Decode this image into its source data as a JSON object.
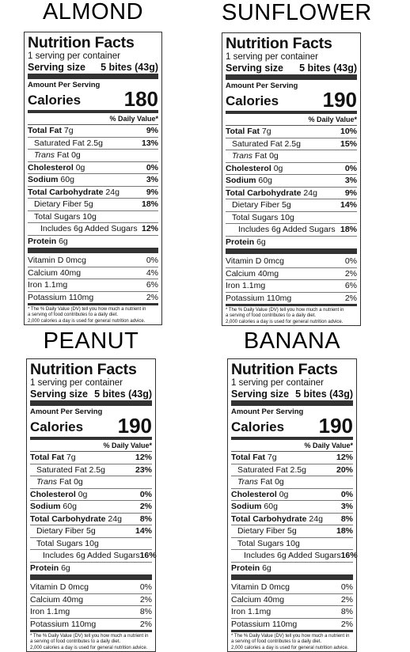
{
  "common": {
    "nutrition_facts": "Nutrition Facts",
    "servings": "1 serving per container",
    "serving_size_label": "Serving size",
    "serving_size_value": "5 bites (43g)",
    "amount_per_serving": "Amount Per Serving",
    "calories_label": "Calories",
    "daily_value_header": "% Daily Value*",
    "total_fat": "Total Fat",
    "saturated_fat": "Saturated Fat 2.5g",
    "trans_fat_prefix": "Trans",
    "trans_fat_suffix": "Fat 0g",
    "cholesterol": "Cholesterol",
    "cholesterol_amt": "0g",
    "sodium": "Sodium",
    "sodium_amt": "60g",
    "total_carb": "Total Carbohydrate",
    "total_carb_amt": "24g",
    "dietary_fiber": "Dietary Fiber 5g",
    "total_sugars": "Total Sugars 10g",
    "added_sugars": "Includes 6g Added Sugars",
    "protein": "Protein",
    "protein_amt": "6g",
    "vitamin_d": "Vitamin D 0mcg",
    "calcium": "Calcium 40mg",
    "iron": "Iron 1.1mg",
    "potassium": "Potassium 110mg",
    "foot1": "* The % Daily Value (DV) tell you how much a nutrient in",
    "foot2": "a serving of food contributes to a daily diet.",
    "foot3": "2,000 calories a day is used for general nutrition advice."
  },
  "labels": [
    {
      "flavor": "ALMOND",
      "calories": "180",
      "fat_amt": "7g",
      "fat_pct": "9%",
      "sat_pct": "13%",
      "chol_pct": "0%",
      "sodium_pct": "3%",
      "carb_pct": "9%",
      "fiber_pct": "18%",
      "added_pct": "12%",
      "vitd_pct": "0%",
      "calcium_pct": "4%",
      "iron_pct": "6%",
      "potassium_pct": "2%"
    },
    {
      "flavor": "SUNFLOWER",
      "calories": "190",
      "fat_amt": "7g",
      "fat_pct": "10%",
      "sat_pct": "15%",
      "chol_pct": "0%",
      "sodium_pct": "3%",
      "carb_pct": "9%",
      "fiber_pct": "14%",
      "added_pct": "18%",
      "vitd_pct": "0%",
      "calcium_pct": "2%",
      "iron_pct": "6%",
      "potassium_pct": "2%"
    },
    {
      "flavor": "PEANUT",
      "calories": "190",
      "fat_amt": "7g",
      "fat_pct": "12%",
      "sat_pct": "23%",
      "chol_pct": "0%",
      "sodium_pct": "2%",
      "carb_pct": "8%",
      "fiber_pct": "14%",
      "added_pct": "16%",
      "vitd_pct": "0%",
      "calcium_pct": "2%",
      "iron_pct": "8%",
      "potassium_pct": "2%"
    },
    {
      "flavor": "BANANA",
      "calories": "190",
      "fat_amt": "7g",
      "fat_pct": "12%",
      "sat_pct": "20%",
      "chol_pct": "0%",
      "sodium_pct": "3%",
      "carb_pct": "8%",
      "fiber_pct": "18%",
      "added_pct": "16%",
      "vitd_pct": "0%",
      "calcium_pct": "2%",
      "iron_pct": "8%",
      "potassium_pct": "2%"
    }
  ]
}
